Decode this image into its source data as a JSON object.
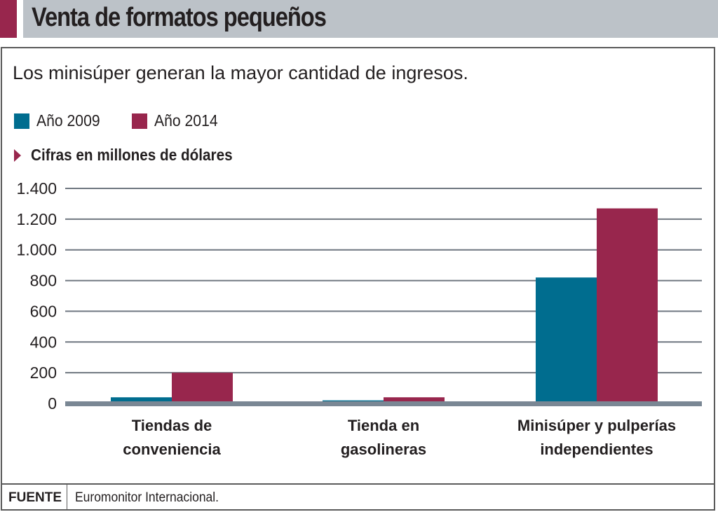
{
  "header": {
    "title": "Venta de formatos pequeños",
    "accent_color": "#98264d",
    "bar_color": "#bcc2c8"
  },
  "subtitle": "Los minisúper generan la mayor cantidad de ingresos.",
  "units_note": "Cifras en millones de dólares",
  "footer": {
    "label": "FUENTE",
    "source": "Euromonitor Internacional."
  },
  "chart_data": {
    "type": "bar",
    "title": "Venta de formatos pequeños",
    "subtitle": "Los minisúper generan la mayor cantidad de ingresos.",
    "xlabel": "",
    "ylabel": "Cifras en millones de dólares",
    "categories": [
      "Tiendas de\nconveniencia",
      "Tienda en\ngasolineras",
      "Minisúper y pulperías\nindependientes"
    ],
    "series": [
      {
        "name": "Año 2009",
        "color": "#006d8f",
        "values": [
          40,
          20,
          820
        ]
      },
      {
        "name": "Año 2014",
        "color": "#98264d",
        "values": [
          200,
          40,
          1270
        ]
      }
    ],
    "ylim": [
      0,
      1400
    ],
    "yticks": [
      0,
      200,
      400,
      600,
      800,
      1000,
      1200,
      1400
    ],
    "ytick_labels": [
      "0",
      "200",
      "400",
      "600",
      "800",
      "1.000",
      "1.200",
      "1.400"
    ],
    "grid": true,
    "legend_position": "top-left"
  }
}
